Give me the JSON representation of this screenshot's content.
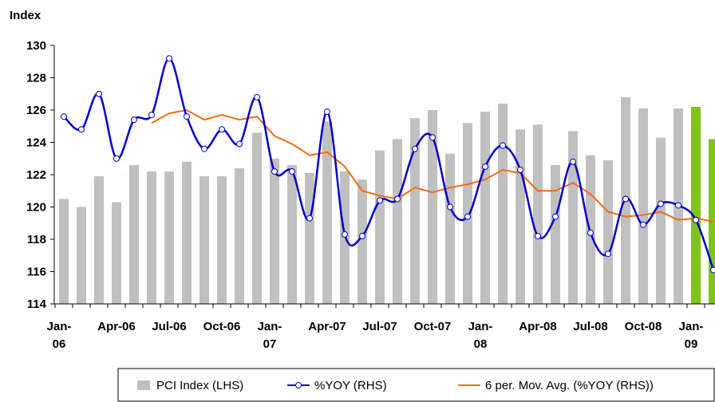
{
  "chart_data": {
    "type": "bar_line",
    "y_label": "Index",
    "categories": [
      "Jan-06",
      null,
      null,
      "Apr-06",
      null,
      null,
      "Jul-06",
      null,
      null,
      "Oct-06",
      null,
      null,
      "Jan-07",
      null,
      null,
      "Apr-07",
      null,
      null,
      "Jul-07",
      null,
      null,
      "Oct-07",
      null,
      null,
      "Jan-08",
      null,
      null,
      "Apr-08",
      null,
      null,
      "Jul-08",
      null,
      null,
      "Oct-08",
      null,
      null,
      "Jan-09",
      null
    ],
    "ylim": [
      114,
      130
    ],
    "yticks": [
      114,
      116,
      118,
      120,
      122,
      124,
      126,
      128,
      130
    ],
    "series": [
      {
        "name": "PCI Index (LHS)",
        "kind": "bar",
        "color": "#c0c0c0",
        "bar_colors": [
          "#c0c0c0",
          "#c0c0c0",
          "#c0c0c0",
          "#c0c0c0",
          "#c0c0c0",
          "#c0c0c0",
          "#c0c0c0",
          "#c0c0c0",
          "#c0c0c0",
          "#c0c0c0",
          "#c0c0c0",
          "#c0c0c0",
          "#c0c0c0",
          "#c0c0c0",
          "#c0c0c0",
          "#c0c0c0",
          "#c0c0c0",
          "#c0c0c0",
          "#c0c0c0",
          "#c0c0c0",
          "#c0c0c0",
          "#c0c0c0",
          "#c0c0c0",
          "#c0c0c0",
          "#c0c0c0",
          "#c0c0c0",
          "#c0c0c0",
          "#c0c0c0",
          "#c0c0c0",
          "#c0c0c0",
          "#c0c0c0",
          "#c0c0c0",
          "#c0c0c0",
          "#c0c0c0",
          "#c0c0c0",
          "#c0c0c0",
          "#7fc31c",
          "#7fc31c"
        ],
        "values": [
          120.5,
          120.0,
          121.9,
          120.3,
          122.6,
          122.2,
          122.2,
          122.8,
          121.9,
          121.9,
          122.4,
          124.6,
          123.0,
          122.6,
          122.1,
          125.3,
          122.2,
          121.7,
          123.5,
          124.2,
          125.5,
          126.0,
          123.3,
          125.2,
          125.9,
          126.4,
          124.8,
          125.1,
          122.6,
          124.7,
          123.2,
          122.9,
          126.8,
          126.1,
          124.3,
          126.1,
          126.2,
          124.2
        ]
      },
      {
        "name": "%YOY (RHS)",
        "kind": "line_marker",
        "color": "#0000cc",
        "values": [
          125.6,
          124.8,
          127.0,
          123.0,
          125.4,
          125.7,
          129.2,
          125.6,
          123.6,
          124.8,
          123.9,
          126.8,
          122.2,
          122.2,
          119.3,
          125.9,
          118.3,
          118.2,
          120.4,
          120.5,
          123.6,
          124.3,
          120.0,
          119.4,
          122.5,
          123.8,
          122.3,
          118.2,
          119.4,
          122.8,
          118.4,
          117.1,
          120.5,
          118.9,
          120.2,
          120.1,
          119.2,
          116.1
        ]
      },
      {
        "name": "6 per. Mov. Avg. (%YOY (RHS))",
        "kind": "line",
        "color": "#f26b16",
        "values": [
          null,
          null,
          null,
          null,
          null,
          125.2,
          125.8,
          126.0,
          125.4,
          125.7,
          125.4,
          125.6,
          124.4,
          123.9,
          123.2,
          123.4,
          122.5,
          121.0,
          120.7,
          120.5,
          121.2,
          120.9,
          121.2,
          121.4,
          121.7,
          122.3,
          122.1,
          121.0,
          121.0,
          121.5,
          120.8,
          119.7,
          119.4,
          119.5,
          119.7,
          119.2,
          119.3,
          119.1
        ]
      }
    ]
  }
}
